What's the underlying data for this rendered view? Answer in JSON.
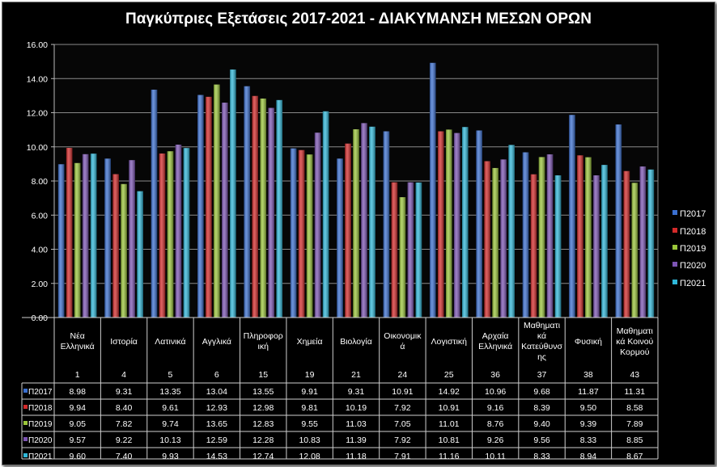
{
  "chart_data": {
    "type": "bar",
    "title": "Παγκύπριες Εξετάσεις 2017-2021 - ΔΙΑΚΥΜΑΝΣΗ ΜΕΣΩΝ ΟΡΩΝ",
    "xlabel": "",
    "ylabel": "",
    "ylim": [
      0,
      16
    ],
    "yticks": [
      "0.00",
      "2.00",
      "4.00",
      "6.00",
      "8.00",
      "10.00",
      "12.00",
      "14.00",
      "16.00"
    ],
    "grid": true,
    "legend_position": "right",
    "categories": [
      "Νέα Ελληνικά",
      "Ιστορία",
      "Λατινικά",
      "Αγγλικά",
      "Πληροφορική",
      "Χημεία",
      "Βιολογία",
      "Οικονομικά",
      "Λογιστική",
      "Αρχαία Ελληνικά",
      "Μαθηματικά Κατεύθυνσης",
      "Φυσική",
      "Μαθηματικά Κοινού Κορμού"
    ],
    "category_labels": [
      "Νέα\nΕλληνικά",
      "Ιστορία",
      "Λατινικά",
      "Αγγλικά",
      "Πληροφορ\nική",
      "Χημεία",
      "Βιολογία",
      "Οικονομικ\nά",
      "Λογιστική",
      "Αρχαία\nΕλληνικά",
      "Μαθηματι\nκά\nΚατεύθυνσ\nης",
      "Φυσική",
      "Μαθηματι\nκά Κοινού\nΚορμού"
    ],
    "codes": [
      "1",
      "4",
      "5",
      "6",
      "15",
      "19",
      "21",
      "24",
      "25",
      "36",
      "37",
      "38",
      "43"
    ],
    "series": [
      {
        "name": "Π2017",
        "color": "#3a6fd0",
        "values": [
          8.98,
          9.31,
          13.35,
          13.04,
          13.55,
          9.91,
          9.31,
          10.91,
          14.92,
          10.96,
          9.68,
          11.87,
          11.31
        ],
        "labels": [
          "8.98",
          "9.31",
          "13.35",
          "13.04",
          "13.55",
          "9.91",
          "9.31",
          "10.91",
          "14.92",
          "10.96",
          "9.68",
          "11.87",
          "11.31"
        ]
      },
      {
        "name": "Π2018",
        "color": "#d42a2a",
        "values": [
          9.94,
          8.4,
          9.61,
          12.93,
          12.98,
          9.81,
          10.19,
          7.92,
          10.91,
          9.16,
          8.39,
          9.5,
          8.58
        ],
        "labels": [
          "9.94",
          "8.40",
          "9.61",
          "12.93",
          "12.98",
          "9.81",
          "10.19",
          "7.92",
          "10.91",
          "9.16",
          "8.39",
          "9.50",
          "8.58"
        ]
      },
      {
        "name": "Π2019",
        "color": "#9bc63a",
        "values": [
          9.05,
          7.82,
          9.74,
          13.65,
          12.83,
          9.55,
          11.03,
          7.05,
          11.01,
          8.76,
          9.4,
          9.39,
          7.89
        ],
        "labels": [
          "9.05",
          "7.82",
          "9.74",
          "13.65",
          "12.83",
          "9.55",
          "11.03",
          "7.05",
          "11.01",
          "8.76",
          "9.40",
          "9.39",
          "7.89"
        ]
      },
      {
        "name": "Π2020",
        "color": "#7d55b4",
        "values": [
          9.57,
          9.22,
          10.13,
          12.59,
          12.28,
          10.83,
          11.39,
          7.92,
          10.81,
          9.26,
          9.56,
          8.33,
          8.85
        ],
        "labels": [
          "9.57",
          "9.22",
          "10.13",
          "12.59",
          "12.28",
          "10.83",
          "11.39",
          "7.92",
          "10.81",
          "9.26",
          "9.56",
          "8.33",
          "8.85"
        ]
      },
      {
        "name": "Π2021",
        "color": "#2fb8da",
        "values": [
          9.6,
          7.4,
          9.93,
          14.53,
          12.74,
          12.08,
          11.18,
          7.91,
          11.16,
          10.11,
          8.33,
          8.94,
          8.67
        ],
        "labels": [
          "9.60",
          "7.40",
          "9.93",
          "14.53",
          "12.74",
          "12.08",
          "11.18",
          "7.91",
          "11.16",
          "10.11",
          "8.33",
          "8.94",
          "8.67"
        ]
      }
    ]
  }
}
